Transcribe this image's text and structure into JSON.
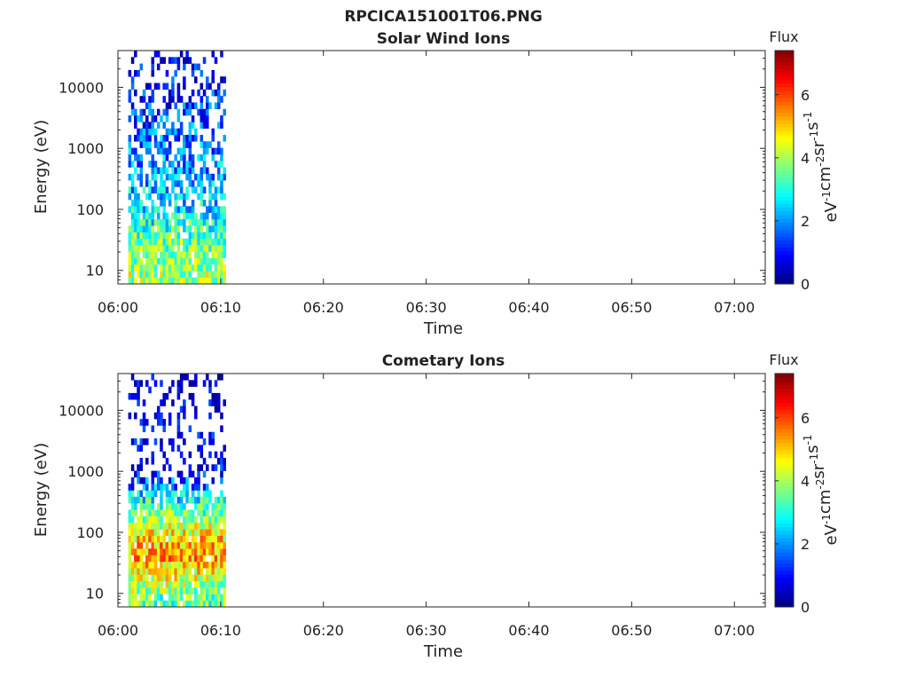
{
  "figure_title": "RPCICA151001T06.PNG",
  "chart_data": [
    {
      "type": "heatmap",
      "title": "Solar Wind Ions",
      "xlabel": "Time",
      "ylabel": "Energy (eV)",
      "x_ticks": [
        "06:00",
        "06:10",
        "06:20",
        "06:30",
        "06:40",
        "06:50",
        "07:00"
      ],
      "x_range_minutes": [
        0,
        63
      ],
      "data_x_range_minutes": [
        1,
        10.5
      ],
      "y_scale": "log",
      "y_ticks": [
        "10",
        "100",
        "1000",
        "10000"
      ],
      "ylim": [
        6,
        40000
      ],
      "colorbar": {
        "title": "Flux",
        "label_parts": [
          "eV",
          "-1",
          "cm",
          "-2",
          "sr",
          "-1",
          "s",
          "-1"
        ],
        "ticks": [
          "0",
          "2",
          "4",
          "6"
        ],
        "range": [
          0,
          7.4
        ],
        "colormap": "jet"
      },
      "flux_profile": [
        {
          "energy": 8,
          "flux": 4.0
        },
        {
          "energy": 15,
          "flux": 3.8
        },
        {
          "energy": 30,
          "flux": 3.6
        },
        {
          "energy": 50,
          "flux": 3.2
        },
        {
          "energy": 100,
          "flux": 2.6
        },
        {
          "energy": 200,
          "flux": 2.4
        },
        {
          "energy": 500,
          "flux": 2.1
        },
        {
          "energy": 2000,
          "flux": 1.6
        },
        {
          "energy": 10000,
          "flux": 1.0
        },
        {
          "energy": 35000,
          "flux": 0.5
        }
      ]
    },
    {
      "type": "heatmap",
      "title": "Cometary Ions",
      "xlabel": "Time",
      "ylabel": "Energy (eV)",
      "x_ticks": [
        "06:00",
        "06:10",
        "06:20",
        "06:30",
        "06:40",
        "06:50",
        "07:00"
      ],
      "x_range_minutes": [
        0,
        63
      ],
      "data_x_range_minutes": [
        1,
        10.5
      ],
      "y_scale": "log",
      "y_ticks": [
        "10",
        "100",
        "1000",
        "10000"
      ],
      "ylim": [
        6,
        40000
      ],
      "colorbar": {
        "title": "Flux",
        "label_parts": [
          "eV",
          "-1",
          "cm",
          "-2",
          "sr",
          "-1",
          "s",
          "-1"
        ],
        "ticks": [
          "0",
          "2",
          "4",
          "6"
        ],
        "range": [
          0,
          7.4
        ],
        "colormap": "jet"
      },
      "flux_profile": [
        {
          "energy": 8,
          "flux": 3.5
        },
        {
          "energy": 20,
          "flux": 4.5
        },
        {
          "energy": 40,
          "flux": 5.2
        },
        {
          "energy": 70,
          "flux": 5.0
        },
        {
          "energy": 150,
          "flux": 4.0
        },
        {
          "energy": 400,
          "flux": 2.5
        },
        {
          "energy": 1000,
          "flux": 0.8
        },
        {
          "energy": 10000,
          "flux": 0.4
        }
      ]
    }
  ]
}
